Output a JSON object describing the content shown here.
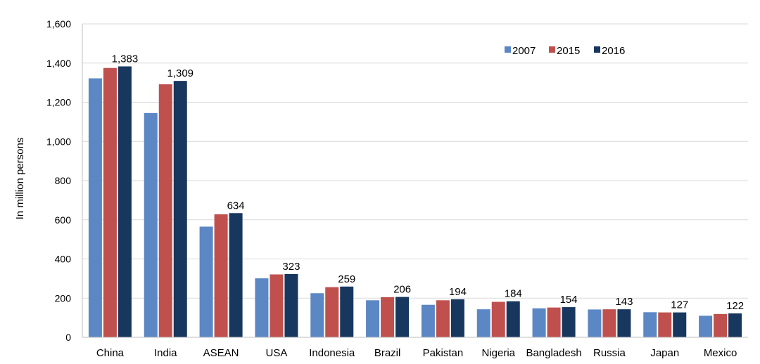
{
  "chart_data": {
    "type": "bar",
    "title": "",
    "xlabel": "",
    "ylabel": "In million persons",
    "ylim": [
      0,
      1600
    ],
    "yticks": [
      0,
      200,
      400,
      600,
      800,
      1000,
      1200,
      1400,
      1600
    ],
    "ytick_labels": [
      "0",
      "200",
      "400",
      "600",
      "800",
      "1,000",
      "1,200",
      "1,400",
      "1,600"
    ],
    "grid": true,
    "legend_position": "top-right",
    "categories": [
      "China",
      "India",
      "ASEAN",
      "USA",
      "Indonesia",
      "Brazil",
      "Pakistan",
      "Nigeria",
      "Bangladesh",
      "Russia",
      "Japan",
      "Mexico"
    ],
    "series": [
      {
        "name": "2007",
        "color": "#5b87c5",
        "values": [
          1322,
          1145,
          565,
          301,
          225,
          189,
          166,
          143,
          148,
          142,
          128,
          110
        ]
      },
      {
        "name": "2015",
        "color": "#c0504d",
        "values": [
          1375,
          1292,
          628,
          321,
          256,
          205,
          189,
          181,
          152,
          143,
          127,
          119
        ]
      },
      {
        "name": "2016",
        "color": "#17375e",
        "values": [
          1383,
          1309,
          634,
          323,
          259,
          206,
          194,
          184,
          154,
          143,
          127,
          122
        ]
      }
    ],
    "data_labels": [
      "1,383",
      "1,309",
      "634",
      "323",
      "259",
      "206",
      "194",
      "184",
      "154",
      "143",
      "127",
      "122"
    ]
  }
}
